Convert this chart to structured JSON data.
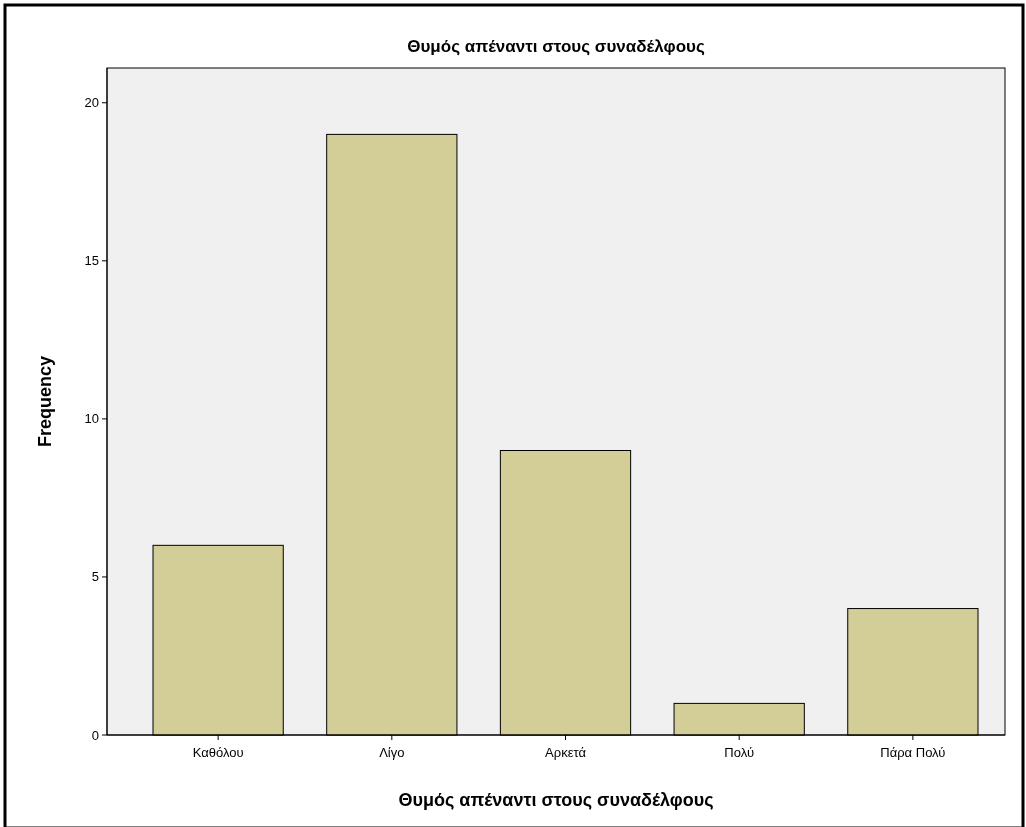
{
  "chart_data": {
    "type": "bar",
    "title": "Θυμός απέναντι στους συναδέλφους",
    "xlabel": "Θυμός απέναντι στους συναδέλφους",
    "ylabel": "Frequency",
    "categories": [
      "Καθόλου",
      "Λίγο",
      "Αρκετά",
      "Πολύ",
      "Πάρα Πολύ"
    ],
    "values": [
      6,
      19,
      9,
      1,
      4
    ],
    "color": "#d3ce97",
    "ylim": [
      0,
      21.1
    ],
    "yticks": [
      0,
      5,
      10,
      15,
      20
    ],
    "grid": false
  }
}
